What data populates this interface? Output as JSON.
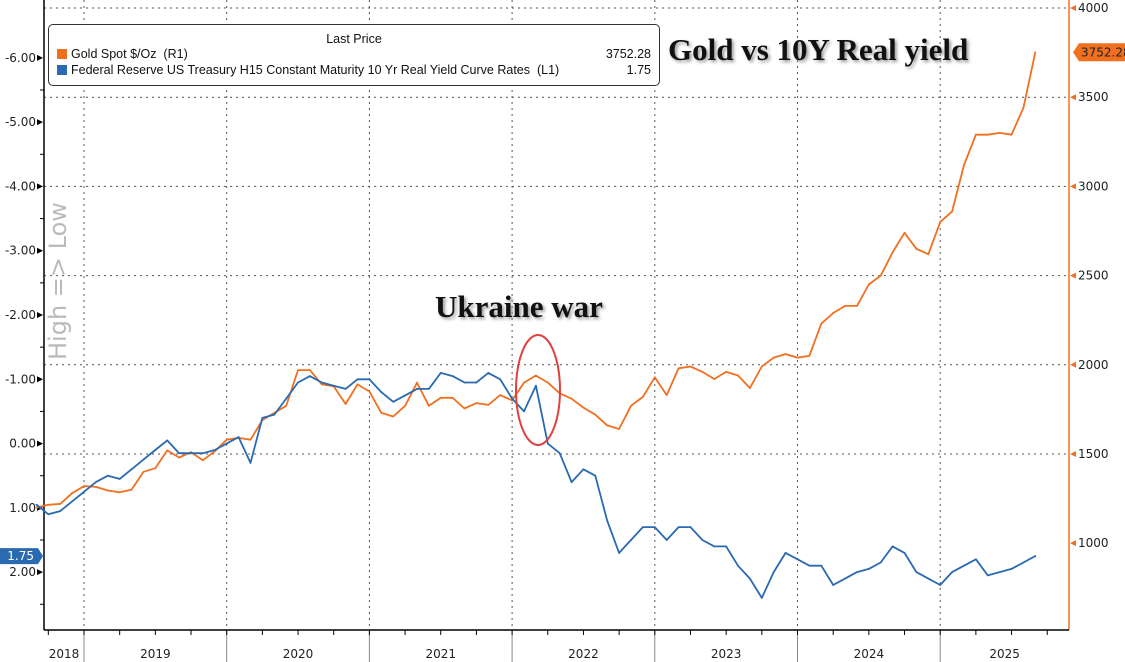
{
  "chart_data": {
    "type": "line",
    "title": "Gold vs 10Y Real yield",
    "legend_header": "Last Price",
    "legend_placement": "top-left",
    "annotation": "Ukraine war",
    "left_axis_label": "High => Low",
    "x_ticks": [
      "2018",
      "2019",
      "2020",
      "2021",
      "2022",
      "2023",
      "2024",
      "2025"
    ],
    "left_axis": {
      "inverted": true,
      "range": [
        2.9,
        -6.9
      ],
      "ticks": [
        -6,
        -5,
        -4,
        -3,
        -2,
        -1,
        0,
        1,
        2
      ],
      "tick_labels": [
        "-6.00",
        "-5.00",
        "-4.00",
        "-3.00",
        "-2.00",
        "-1.00",
        "0.00",
        "1.00",
        "2.00"
      ]
    },
    "right_axis": {
      "range": [
        513,
        4045
      ],
      "ticks": [
        1000,
        1500,
        2000,
        2500,
        3000,
        3500,
        4000
      ],
      "tick_labels": [
        "1000",
        "1500",
        "2000",
        "2500",
        "3000",
        "3500",
        "4000"
      ]
    },
    "grid": true,
    "x": [
      "2018-09",
      "2018-10",
      "2018-11",
      "2018-12",
      "2019-01",
      "2019-02",
      "2019-03",
      "2019-04",
      "2019-05",
      "2019-06",
      "2019-07",
      "2019-08",
      "2019-09",
      "2019-10",
      "2019-11",
      "2019-12",
      "2020-01",
      "2020-02",
      "2020-03",
      "2020-04",
      "2020-05",
      "2020-06",
      "2020-07",
      "2020-08",
      "2020-09",
      "2020-10",
      "2020-11",
      "2020-12",
      "2021-01",
      "2021-02",
      "2021-03",
      "2021-04",
      "2021-05",
      "2021-06",
      "2021-07",
      "2021-08",
      "2021-09",
      "2021-10",
      "2021-11",
      "2021-12",
      "2022-01",
      "2022-02",
      "2022-03",
      "2022-04",
      "2022-05",
      "2022-06",
      "2022-07",
      "2022-08",
      "2022-09",
      "2022-10",
      "2022-11",
      "2022-12",
      "2023-01",
      "2023-02",
      "2023-03",
      "2023-04",
      "2023-05",
      "2023-06",
      "2023-07",
      "2023-08",
      "2023-09",
      "2023-10",
      "2023-11",
      "2023-12",
      "2024-01",
      "2024-02",
      "2024-03",
      "2024-04",
      "2024-05",
      "2024-06",
      "2024-07",
      "2024-08",
      "2024-09",
      "2024-10",
      "2024-11",
      "2024-12",
      "2025-01",
      "2025-02",
      "2025-03",
      "2025-04",
      "2025-05",
      "2025-06",
      "2025-07",
      "2025-08",
      "2025-09"
    ],
    "series": [
      {
        "name": "Gold Spot $/Oz",
        "axis_tag": "(R1)",
        "axis": "right",
        "color": "#f07020",
        "last": "3752.28",
        "values": [
          1200,
          1215,
          1220,
          1280,
          1320,
          1315,
          1295,
          1285,
          1300,
          1400,
          1420,
          1520,
          1480,
          1510,
          1465,
          1515,
          1580,
          1590,
          1580,
          1690,
          1730,
          1770,
          1970,
          1970,
          1890,
          1880,
          1780,
          1890,
          1850,
          1730,
          1710,
          1770,
          1900,
          1770,
          1815,
          1815,
          1755,
          1785,
          1775,
          1830,
          1800,
          1900,
          1940,
          1900,
          1840,
          1810,
          1760,
          1720,
          1660,
          1640,
          1770,
          1820,
          1930,
          1830,
          1980,
          1990,
          1960,
          1920,
          1960,
          1940,
          1870,
          1990,
          2040,
          2060,
          2040,
          2050,
          2230,
          2290,
          2330,
          2330,
          2450,
          2500,
          2630,
          2740,
          2650,
          2620,
          2800,
          2860,
          3120,
          3290,
          3290,
          3300,
          3290,
          3440,
          3752
        ]
      },
      {
        "name": "Federal Reserve US Treasury H15 Constant Maturity 10 Yr Real Yield Curve Rates",
        "axis_tag": "(L1)",
        "axis": "left",
        "color": "#2a6ab0",
        "last": "1.75",
        "values": [
          0.95,
          1.1,
          1.05,
          0.9,
          0.75,
          0.6,
          0.5,
          0.55,
          0.4,
          0.25,
          0.1,
          -0.05,
          0.15,
          0.15,
          0.15,
          0.1,
          0.0,
          -0.1,
          0.3,
          -0.4,
          -0.45,
          -0.7,
          -0.95,
          -1.05,
          -0.95,
          -0.9,
          -0.85,
          -1.0,
          -1.0,
          -0.8,
          -0.65,
          -0.75,
          -0.85,
          -0.85,
          -1.1,
          -1.05,
          -0.95,
          -0.95,
          -1.1,
          -1.0,
          -0.7,
          -0.5,
          -0.9,
          0.0,
          0.15,
          0.6,
          0.4,
          0.5,
          1.2,
          1.7,
          1.5,
          1.3,
          1.3,
          1.5,
          1.3,
          1.3,
          1.5,
          1.6,
          1.6,
          1.9,
          2.1,
          2.4,
          2.0,
          1.7,
          1.8,
          1.9,
          1.9,
          2.2,
          2.1,
          2.0,
          1.95,
          1.85,
          1.6,
          1.7,
          2.0,
          2.1,
          2.2,
          2.0,
          1.9,
          1.8,
          2.05,
          2.0,
          1.95,
          1.85,
          1.75
        ]
      }
    ]
  }
}
